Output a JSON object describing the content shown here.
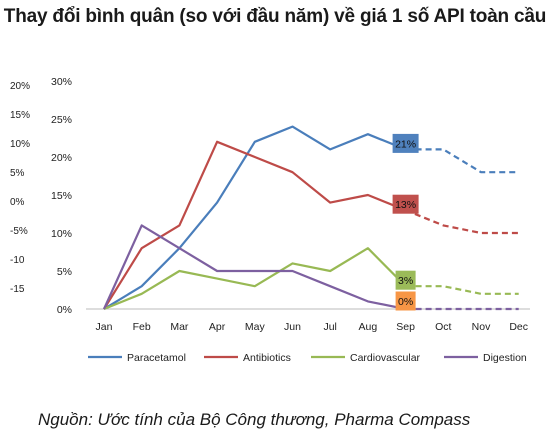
{
  "chart_data": {
    "type": "line",
    "title": "Thay đổi bình quân (so với đầu năm) về giá 1 số API toàn cầu",
    "categories": [
      "Jan",
      "Feb",
      "Mar",
      "Apr",
      "May",
      "Jun",
      "Jul",
      "Aug",
      "Sep",
      "Oct",
      "Nov",
      "Dec"
    ],
    "ylim": [
      0,
      30
    ],
    "yticks": [
      "0%",
      "5%",
      "10%",
      "15%",
      "20%",
      "25%",
      "30%"
    ],
    "ghost_yticks": [
      "20%",
      "15%",
      "10%",
      "5%",
      "0%",
      "-5%",
      "-10",
      "-15"
    ],
    "forecast_start_index": 8,
    "legend_position": "bottom",
    "series": [
      {
        "name": "Paracetamol",
        "color": "#4a7ebb",
        "values": [
          0,
          3,
          8,
          14,
          22,
          24,
          21,
          23,
          21,
          21,
          18,
          18
        ],
        "end_label": "21%"
      },
      {
        "name": "Antibiotics",
        "color": "#be4b48",
        "values": [
          0,
          8,
          11,
          22,
          20,
          18,
          14,
          15,
          13,
          11,
          10,
          10
        ],
        "end_label": "13%"
      },
      {
        "name": "Cardiovascular",
        "color": "#98b954",
        "values": [
          0,
          2,
          5,
          4,
          3,
          6,
          5,
          8,
          3,
          3,
          2,
          2
        ],
        "end_label": "3%"
      },
      {
        "name": "Digestion",
        "color": "#7d60a0",
        "values": [
          0,
          11,
          8,
          5,
          5,
          5,
          3,
          1,
          0,
          0,
          0,
          0
        ],
        "end_label": "0%"
      }
    ],
    "end_label_colors": [
      "#4f81bd",
      "#c0504d",
      "#9bbb59",
      "#f79646"
    ]
  },
  "source": "Nguồn: Ước tính của Bộ Công thương, Pharma Compass"
}
